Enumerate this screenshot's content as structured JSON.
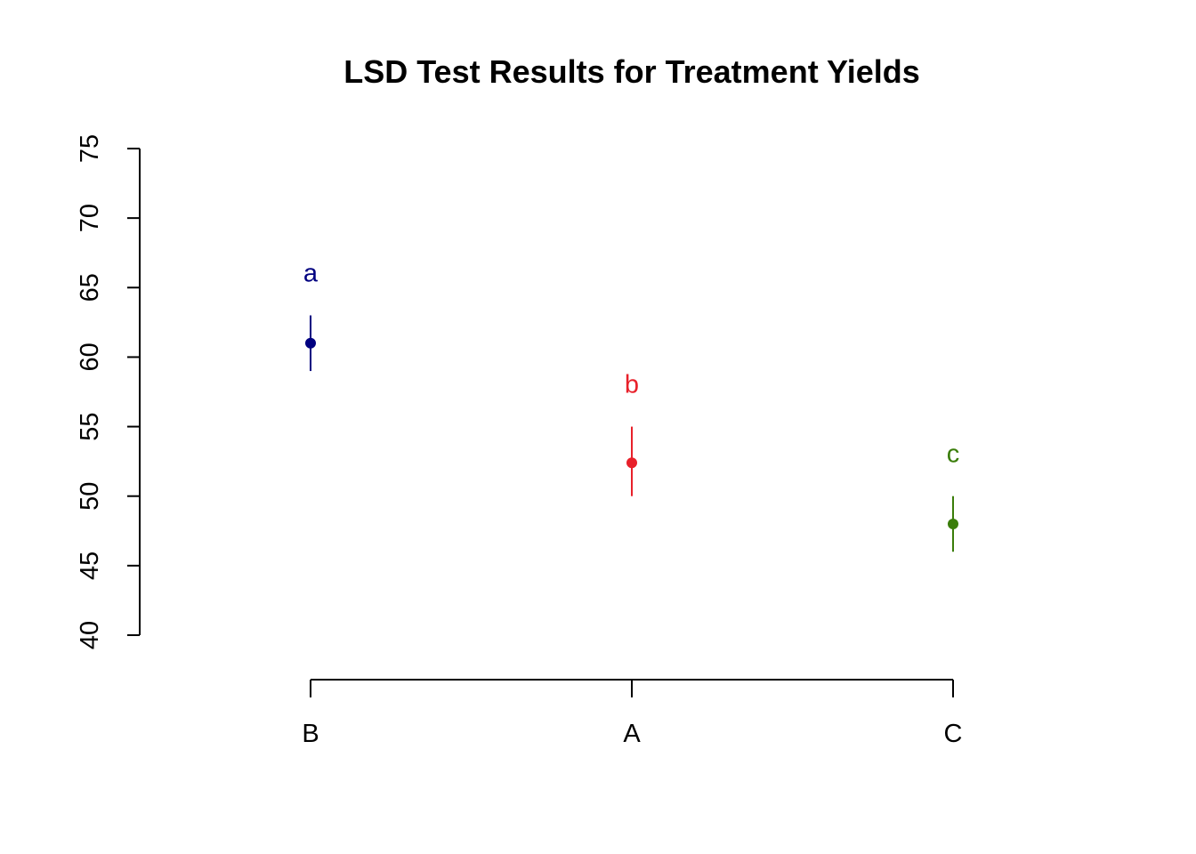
{
  "chart_data": {
    "type": "scatter",
    "title": "LSD Test Results for Treatment Yields",
    "xlabel": "",
    "ylabel": "",
    "categories": [
      "B",
      "A",
      "C"
    ],
    "ylim": [
      40,
      75
    ],
    "y_ticks": [
      "40",
      "45",
      "50",
      "55",
      "60",
      "65",
      "70",
      "75"
    ],
    "points": [
      {
        "category": "B",
        "mean": 61,
        "lower": 59,
        "upper": 63,
        "group": "a",
        "color": "#000080"
      },
      {
        "category": "A",
        "mean": 52.4,
        "lower": 50,
        "upper": 55,
        "group": "b",
        "color": "#e8202a"
      },
      {
        "category": "C",
        "mean": 48,
        "lower": 46,
        "upper": 50,
        "group": "c",
        "color": "#3a7d0a"
      }
    ],
    "grid": false,
    "legend": "none"
  }
}
